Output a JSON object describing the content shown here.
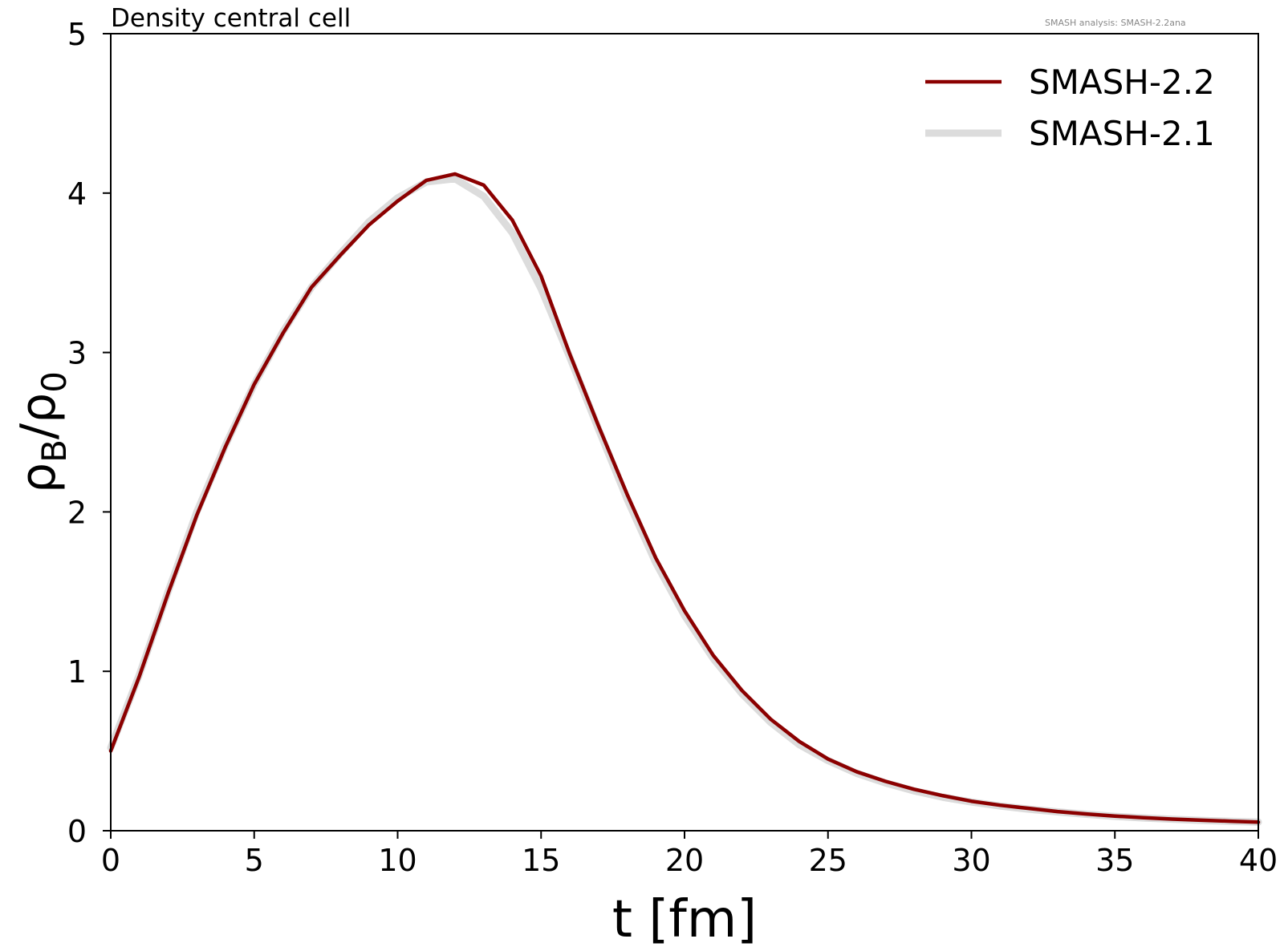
{
  "chart_data": {
    "type": "line",
    "title": "Density central cell",
    "watermark": "SMASH analysis: SMASH-2.2ana",
    "xlabel": "t [fm]",
    "ylabel_base": "ρ",
    "ylabel_sub1": "B",
    "ylabel_sep": "/",
    "ylabel_sub2": "0",
    "xlim": [
      0,
      40
    ],
    "ylim": [
      0,
      5
    ],
    "xticks": [
      0,
      5,
      10,
      15,
      20,
      25,
      30,
      35,
      40
    ],
    "yticks": [
      0,
      1,
      2,
      3,
      4,
      5
    ],
    "grid": false,
    "legend_position": "top-right",
    "x": [
      0,
      1,
      2,
      3,
      4,
      5,
      6,
      7,
      8,
      9,
      10,
      11,
      12,
      13,
      14,
      15,
      16,
      17,
      18,
      19,
      20,
      21,
      22,
      23,
      24,
      25,
      26,
      27,
      28,
      29,
      30,
      31,
      32,
      33,
      34,
      35,
      36,
      37,
      38,
      39,
      40
    ],
    "series": [
      {
        "name": "SMASH-2.1",
        "color": "#dcdcdc",
        "values": [
          0.52,
          0.98,
          1.5,
          2.0,
          2.42,
          2.8,
          3.13,
          3.41,
          3.62,
          3.82,
          3.97,
          4.07,
          4.09,
          3.98,
          3.75,
          3.4,
          2.97,
          2.52,
          2.08,
          1.68,
          1.35,
          1.08,
          0.86,
          0.68,
          0.54,
          0.44,
          0.36,
          0.3,
          0.25,
          0.21,
          0.18,
          0.155,
          0.135,
          0.118,
          0.103,
          0.09,
          0.08,
          0.072,
          0.065,
          0.059,
          0.054
        ]
      },
      {
        "name": "SMASH-2.2",
        "color": "#8b0000",
        "values": [
          0.5,
          0.97,
          1.49,
          1.98,
          2.41,
          2.8,
          3.12,
          3.41,
          3.61,
          3.8,
          3.95,
          4.08,
          4.12,
          4.05,
          3.83,
          3.48,
          2.99,
          2.54,
          2.11,
          1.71,
          1.38,
          1.1,
          0.88,
          0.7,
          0.56,
          0.45,
          0.37,
          0.31,
          0.26,
          0.22,
          0.185,
          0.16,
          0.14,
          0.12,
          0.105,
          0.092,
          0.082,
          0.073,
          0.066,
          0.06,
          0.054
        ]
      }
    ]
  }
}
